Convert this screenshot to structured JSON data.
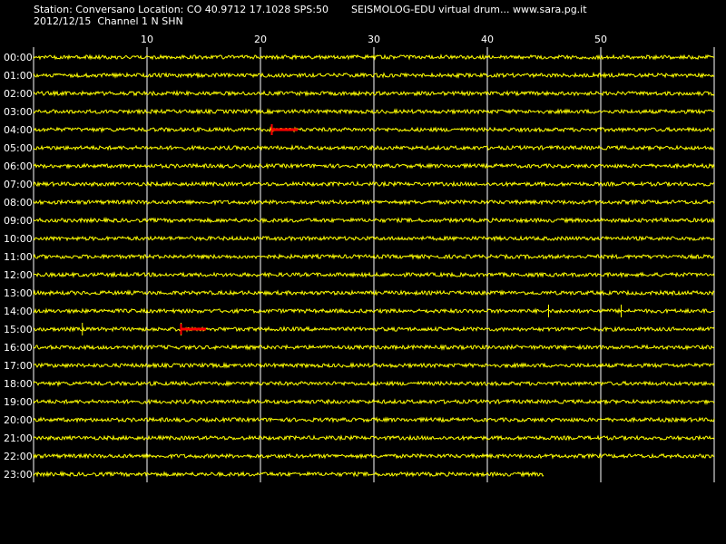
{
  "header": {
    "station_line": "Station: Conversano Location: CO 40.9712 17.1028 SPS:50",
    "date_line": "2012/12/15  Channel 1 N SHN",
    "title": "SEISMOLOG-EDU virtual drum... www.sara.pg.it"
  },
  "colors": {
    "background": "#000000",
    "trace": "#ffff00",
    "marker": "#ff0000",
    "grid": "#ffffff",
    "text": "#ffffff"
  },
  "chart_data": {
    "type": "line",
    "title": "",
    "xlabel": "",
    "ylabel": "",
    "x_unit": "minutes",
    "xlim": [
      0,
      60
    ],
    "x_ticks": [
      10,
      20,
      30,
      40,
      50
    ],
    "grid": true,
    "rows": [
      "00:00",
      "01:00",
      "02:00",
      "03:00",
      "04:00",
      "05:00",
      "06:00",
      "07:00",
      "08:00",
      "09:00",
      "10:00",
      "11:00",
      "12:00",
      "13:00",
      "14:00",
      "15:00",
      "16:00",
      "17:00",
      "18:00",
      "19:00",
      "20:00",
      "21:00",
      "22:00",
      "23:00"
    ],
    "last_row_end_minute": 45,
    "event_markers": [
      {
        "row": "04:00",
        "start_minute": 21,
        "end_minute": 23.3
      },
      {
        "row": "15:00",
        "start_minute": 13,
        "end_minute": 15.2
      }
    ],
    "spikes": [
      {
        "row": "15:00",
        "minute": 4.3
      },
      {
        "row": "15:00",
        "minute": 13
      },
      {
        "row": "14:00",
        "minute": 51.8
      },
      {
        "row": "14:00",
        "minute": 45.4
      }
    ]
  }
}
